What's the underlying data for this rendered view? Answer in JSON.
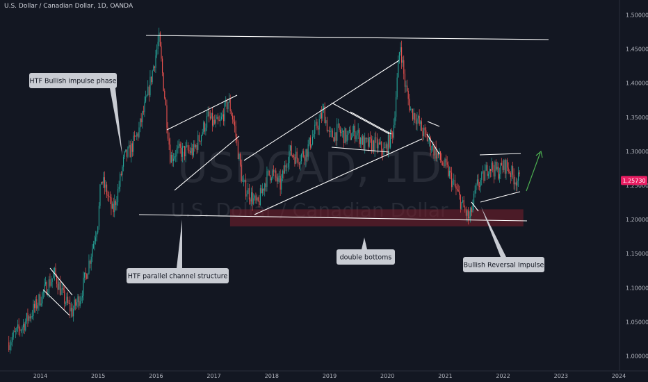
{
  "header": {
    "title": "U.S. Dollar / Canadian Dollar, 1D, OANDA"
  },
  "watermark": {
    "symbol": "USDCAD, 1D",
    "name": "U.S. Dollar / Canadian Dollar"
  },
  "colors": {
    "background": "#131722",
    "bull": "#26a69a",
    "bear": "#ef5350",
    "line": "#ffffff",
    "zone": "#7a1f2b",
    "callout": "#c9ccd3",
    "price_tag": "#e91e63",
    "arrow": "#4caf50"
  },
  "price_tag": {
    "value": "1.25730"
  },
  "annotations": {
    "htf_bullish": "HTF Bullish impulse phase",
    "htf_channel": "HTF parallel channel structure",
    "double_bottoms": "double bottoms",
    "bullish_reversal": "Bullish Reversal Impulse"
  },
  "chart_data": {
    "type": "line",
    "title": "U.S. Dollar / Canadian Dollar, 1D, OANDA",
    "xlabel": "",
    "ylabel": "",
    "xlim": [
      2013.45,
      2024.0
    ],
    "ylim": [
      0.99,
      1.525
    ],
    "x_ticks": [
      "2014",
      "2015",
      "2016",
      "2017",
      "2018",
      "2019",
      "2020",
      "2021",
      "2022",
      "2023",
      "2024"
    ],
    "y_ticks": [
      "1.50000",
      "1.45000",
      "1.40000",
      "1.35000",
      "1.30000",
      "1.25000",
      "1.20000",
      "1.15000",
      "1.10000",
      "1.05000",
      "1.00000"
    ],
    "grid": false,
    "series": [
      {
        "x": [
          2013.45,
          2013.7,
          2013.9,
          2014.1,
          2014.25,
          2014.4,
          2014.55,
          2014.7,
          2014.85,
          2015.0,
          2015.05,
          2015.15,
          2015.25,
          2015.35,
          2015.45,
          2015.55,
          2015.7,
          2015.85,
          2016.05,
          2016.15,
          2016.25,
          2016.35,
          2016.5,
          2016.65,
          2016.8,
          2016.9,
          2017.0,
          2017.1,
          2017.25,
          2017.35,
          2017.5,
          2017.6,
          2017.75,
          2017.9,
          2018.0,
          2018.15,
          2018.3,
          2018.45,
          2018.6,
          2018.75,
          2018.9,
          2019.0,
          2019.15,
          2019.3,
          2019.45,
          2019.6,
          2019.8,
          2019.95,
          2020.1,
          2020.22,
          2020.3,
          2020.4,
          2020.5,
          2020.6,
          2020.75,
          2020.9,
          2021.05,
          2021.2,
          2021.35,
          2021.42,
          2021.55,
          2021.65,
          2021.75,
          2021.9,
          2022.05,
          2022.2,
          2022.3
        ],
        "y": [
          1.02,
          1.045,
          1.07,
          1.1,
          1.12,
          1.085,
          1.065,
          1.09,
          1.14,
          1.2,
          1.26,
          1.24,
          1.21,
          1.245,
          1.29,
          1.3,
          1.33,
          1.38,
          1.465,
          1.38,
          1.29,
          1.3,
          1.3,
          1.3,
          1.33,
          1.35,
          1.34,
          1.34,
          1.375,
          1.34,
          1.25,
          1.24,
          1.22,
          1.26,
          1.27,
          1.25,
          1.3,
          1.29,
          1.3,
          1.33,
          1.36,
          1.32,
          1.33,
          1.32,
          1.33,
          1.31,
          1.31,
          1.3,
          1.33,
          1.46,
          1.4,
          1.36,
          1.35,
          1.33,
          1.31,
          1.29,
          1.27,
          1.24,
          1.21,
          1.2,
          1.25,
          1.26,
          1.28,
          1.27,
          1.28,
          1.26,
          1.2573
        ]
      }
    ]
  }
}
